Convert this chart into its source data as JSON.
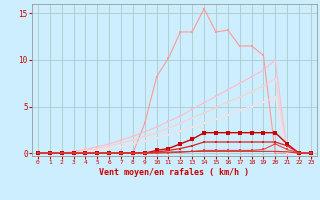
{
  "background_color": "#cceeff",
  "grid_color": "#aacccc",
  "xlim": [
    -0.5,
    23.5
  ],
  "ylim": [
    -0.3,
    16
  ],
  "yticks": [
    0,
    5,
    10,
    15
  ],
  "xticks": [
    0,
    1,
    2,
    3,
    4,
    5,
    6,
    7,
    8,
    9,
    10,
    11,
    12,
    13,
    14,
    15,
    16,
    17,
    18,
    19,
    20,
    21,
    22,
    23
  ],
  "xlabel": "Vent moyen/en rafales ( km/h )",
  "series": [
    {
      "x": [
        0,
        1,
        2,
        3,
        4,
        5,
        6,
        7,
        8,
        9,
        10,
        11,
        12,
        13,
        14,
        15,
        16,
        17,
        18,
        19,
        20,
        21,
        22,
        23
      ],
      "y": [
        0,
        0,
        0,
        0,
        0,
        0,
        0,
        0,
        0,
        3.2,
        8.2,
        10.2,
        13.0,
        13.0,
        15.5,
        13.0,
        13.2,
        11.5,
        11.5,
        10.5,
        0,
        0,
        0,
        0
      ],
      "color": "#ff9999",
      "linewidth": 0.8,
      "marker": "s",
      "markersize": 2.0
    },
    {
      "x": [
        0,
        1,
        2,
        3,
        4,
        5,
        6,
        7,
        8,
        9,
        10,
        11,
        12,
        13,
        14,
        15,
        16,
        17,
        18,
        19,
        20,
        21,
        22,
        23
      ],
      "y": [
        0,
        0,
        0,
        0.2,
        0.4,
        0.7,
        1.0,
        1.4,
        1.8,
        2.3,
        2.8,
        3.4,
        4.0,
        4.7,
        5.4,
        6.1,
        6.8,
        7.5,
        8.2,
        8.9,
        10.0,
        0,
        0,
        0
      ],
      "color": "#ffbbcc",
      "linewidth": 0.8,
      "marker": "s",
      "markersize": 1.8
    },
    {
      "x": [
        0,
        1,
        2,
        3,
        4,
        5,
        6,
        7,
        8,
        9,
        10,
        11,
        12,
        13,
        14,
        15,
        16,
        17,
        18,
        19,
        20,
        21,
        22,
        23
      ],
      "y": [
        0,
        0,
        0,
        0.1,
        0.3,
        0.5,
        0.8,
        1.1,
        1.4,
        1.8,
        2.2,
        2.7,
        3.2,
        3.8,
        4.3,
        4.9,
        5.5,
        6.0,
        6.6,
        7.2,
        8.0,
        0,
        0,
        0
      ],
      "color": "#ffcccc",
      "linewidth": 0.8,
      "marker": "s",
      "markersize": 1.8
    },
    {
      "x": [
        0,
        1,
        2,
        3,
        4,
        5,
        6,
        7,
        8,
        9,
        10,
        11,
        12,
        13,
        14,
        15,
        16,
        17,
        18,
        19,
        20,
        21,
        22,
        23
      ],
      "y": [
        0,
        0,
        0,
        0.0,
        0.2,
        0.3,
        0.5,
        0.7,
        1.0,
        1.3,
        1.6,
        2.0,
        2.4,
        2.8,
        3.2,
        3.7,
        4.1,
        4.6,
        5.0,
        5.5,
        6.0,
        0,
        0,
        0
      ],
      "color": "#ffdde0",
      "linewidth": 0.8,
      "marker": "s",
      "markersize": 1.8
    },
    {
      "x": [
        0,
        1,
        2,
        3,
        4,
        5,
        6,
        7,
        8,
        9,
        10,
        11,
        12,
        13,
        14,
        15,
        16,
        17,
        18,
        19,
        20,
        21,
        22,
        23
      ],
      "y": [
        0,
        0,
        0,
        0,
        0,
        0,
        0,
        0,
        0,
        0,
        0.3,
        0.5,
        1.0,
        1.5,
        2.2,
        2.2,
        2.2,
        2.2,
        2.2,
        2.2,
        2.2,
        1.0,
        0,
        0
      ],
      "color": "#cc0000",
      "linewidth": 1.0,
      "marker": "s",
      "markersize": 2.5
    },
    {
      "x": [
        0,
        1,
        2,
        3,
        4,
        5,
        6,
        7,
        8,
        9,
        10,
        11,
        12,
        13,
        14,
        15,
        16,
        17,
        18,
        19,
        20,
        21,
        22,
        23
      ],
      "y": [
        0,
        0,
        0,
        0,
        0,
        0,
        0,
        0,
        0,
        0,
        0.1,
        0.3,
        0.5,
        0.8,
        1.2,
        1.2,
        1.2,
        1.2,
        1.2,
        1.2,
        1.2,
        0.8,
        0,
        0
      ],
      "color": "#dd2222",
      "linewidth": 0.9,
      "marker": "s",
      "markersize": 2.0
    },
    {
      "x": [
        0,
        1,
        2,
        3,
        4,
        5,
        6,
        7,
        8,
        9,
        10,
        11,
        12,
        13,
        14,
        15,
        16,
        17,
        18,
        19,
        20,
        21,
        22,
        23
      ],
      "y": [
        0,
        0,
        0,
        0,
        0,
        0,
        0,
        0,
        0,
        0,
        0,
        0.05,
        0.1,
        0.2,
        0.3,
        0.3,
        0.3,
        0.3,
        0.3,
        0.4,
        1.0,
        0.4,
        0,
        0
      ],
      "color": "#ee4444",
      "linewidth": 0.8,
      "marker": "s",
      "markersize": 1.8
    },
    {
      "x": [
        0,
        1,
        2,
        3,
        4,
        5,
        6,
        7,
        8,
        9,
        10,
        11,
        12,
        13,
        14,
        15,
        16,
        17,
        18,
        19,
        20,
        21,
        22,
        23
      ],
      "y": [
        0,
        0,
        0,
        0,
        0,
        0,
        0.02,
        0.03,
        0.05,
        0.07,
        0.1,
        0.12,
        0.15,
        0.18,
        0.2,
        0.2,
        0.2,
        0.2,
        0.2,
        0.2,
        0.2,
        0.15,
        0,
        0
      ],
      "color": "#cc3333",
      "linewidth": 0.8,
      "marker": null,
      "markersize": 0
    }
  ],
  "xlabel_color": "#cc0000",
  "tick_color": "#cc0000"
}
